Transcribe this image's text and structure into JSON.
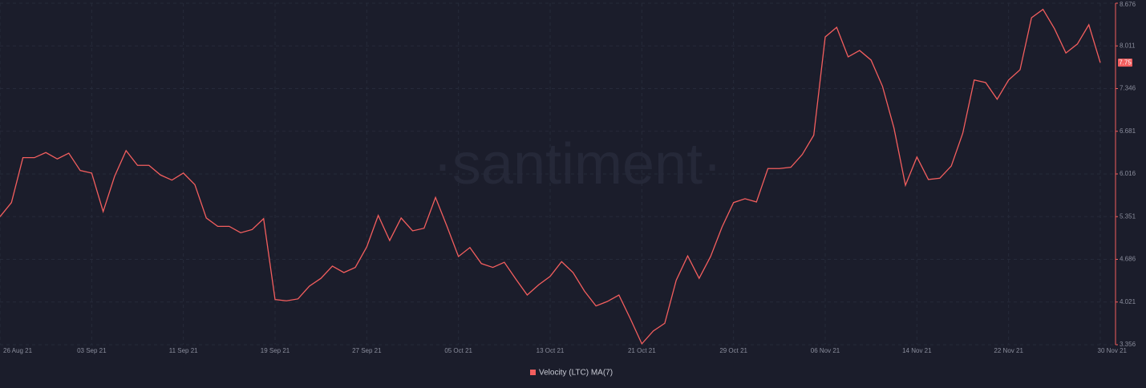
{
  "chart_data": {
    "type": "line",
    "watermark": "·santiment·",
    "categories": [
      "26 Aug 21",
      null,
      null,
      null,
      null,
      null,
      null,
      null,
      "03 Sep 21",
      null,
      null,
      null,
      null,
      null,
      null,
      null,
      "11 Sep 21",
      null,
      null,
      null,
      null,
      null,
      null,
      null,
      "19 Sep 21",
      null,
      null,
      null,
      null,
      null,
      null,
      null,
      "27 Sep 21",
      null,
      null,
      null,
      null,
      null,
      null,
      null,
      "05 Oct 21",
      null,
      null,
      null,
      null,
      null,
      null,
      null,
      "13 Oct 21",
      null,
      null,
      null,
      null,
      null,
      null,
      null,
      "21 Oct 21",
      null,
      null,
      null,
      null,
      null,
      null,
      null,
      "29 Oct 21",
      null,
      null,
      null,
      null,
      null,
      null,
      null,
      "06 Nov 21",
      null,
      null,
      null,
      null,
      null,
      null,
      null,
      "14 Nov 21",
      null,
      null,
      null,
      null,
      null,
      null,
      null,
      "22 Nov 21",
      null,
      null,
      null,
      null,
      null,
      null,
      null,
      "30 Nov 21"
    ],
    "series": [
      {
        "name": "Velocity (LTC) MA(7)",
        "color": "#f35e5e",
        "values": [
          5.35,
          5.57,
          6.27,
          6.27,
          6.35,
          6.25,
          6.34,
          6.07,
          6.03,
          5.43,
          5.98,
          6.38,
          6.15,
          6.15,
          6.0,
          5.92,
          6.03,
          5.85,
          5.33,
          5.2,
          5.2,
          5.1,
          5.15,
          5.32,
          4.06,
          4.04,
          4.07,
          4.27,
          4.39,
          4.58,
          4.48,
          4.56,
          4.88,
          5.37,
          4.98,
          5.33,
          5.13,
          5.17,
          5.65,
          5.2,
          4.73,
          4.87,
          4.62,
          4.56,
          4.64,
          4.38,
          4.13,
          4.29,
          4.42,
          4.65,
          4.48,
          4.19,
          3.96,
          4.03,
          4.13,
          3.76,
          3.37,
          3.57,
          3.69,
          4.36,
          4.74,
          4.39,
          4.73,
          5.19,
          5.57,
          5.63,
          5.58,
          6.1,
          6.1,
          6.12,
          6.32,
          6.62,
          8.15,
          8.3,
          7.84,
          7.94,
          7.79,
          7.38,
          6.73,
          5.84,
          6.28,
          5.93,
          5.95,
          6.14,
          6.65,
          7.48,
          7.44,
          7.18,
          7.48,
          7.64,
          8.45,
          8.58,
          8.28,
          7.9,
          8.04,
          8.34,
          7.75
        ]
      }
    ],
    "ylim": [
      3.356,
      8.676
    ],
    "yticks": [
      3.356,
      4.021,
      4.686,
      5.351,
      6.016,
      6.681,
      7.346,
      8.011,
      8.676
    ],
    "grid": true
  }
}
